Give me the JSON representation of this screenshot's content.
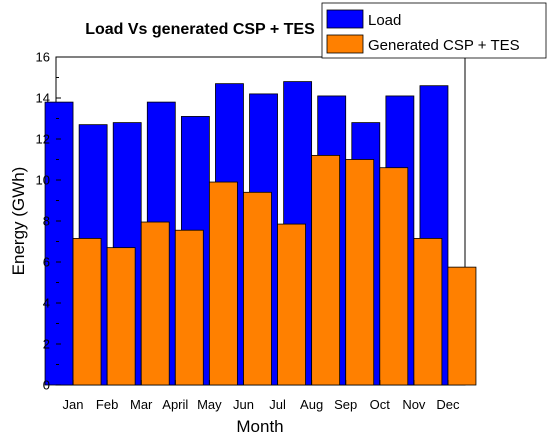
{
  "chart_data": {
    "type": "bar",
    "title": "Load Vs generated CSP + TES",
    "xlabel": "Month",
    "ylabel": "Energy (GWh)",
    "categories": [
      "Jan",
      "Feb",
      "Mar",
      "April",
      "May",
      "Jun",
      "Jul",
      "Aug",
      "Sep",
      "Oct",
      "Nov",
      "Dec"
    ],
    "series": [
      {
        "name": "Load",
        "color": "#0000ff",
        "values": [
          13.8,
          12.7,
          12.8,
          13.8,
          13.1,
          14.7,
          14.2,
          14.8,
          14.1,
          12.8,
          14.1,
          14.6
        ]
      },
      {
        "name": "Generated CSP + TES",
        "color": "#ff8000",
        "values": [
          7.15,
          6.7,
          7.95,
          7.55,
          9.9,
          9.4,
          7.85,
          11.2,
          11.0,
          10.6,
          7.15,
          5.75
        ]
      }
    ],
    "ylim": [
      0,
      16
    ],
    "yticks": [
      0,
      2,
      4,
      6,
      8,
      10,
      12,
      14,
      16
    ],
    "grid": false,
    "legend_position": "top-right"
  }
}
